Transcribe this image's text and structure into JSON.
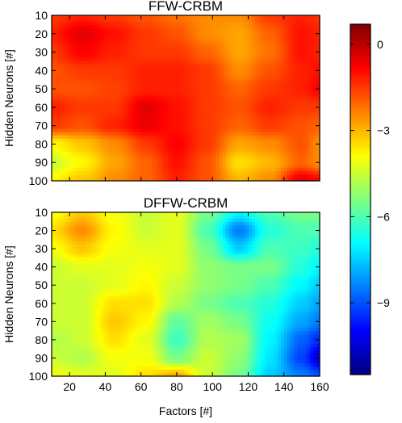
{
  "chart_data": [
    {
      "type": "heatmap",
      "title": "FFW-CRBM",
      "xlabel": "",
      "ylabel": "Hidden Neurons [#]",
      "xlim": [
        10,
        160
      ],
      "ylim": [
        10,
        100
      ],
      "y_inverted": true,
      "x_ticks": [],
      "y_ticks": [
        10,
        20,
        30,
        40,
        50,
        60,
        70,
        80,
        90,
        100
      ],
      "x_grid": [
        10,
        27,
        45,
        63,
        80,
        97,
        115,
        132,
        150,
        160
      ],
      "y_grid": [
        10,
        20,
        30,
        40,
        50,
        60,
        70,
        80,
        90,
        100
      ],
      "values": [
        [
          -1.5,
          -1.2,
          -1.5,
          -1.8,
          -2.2,
          -2.5,
          -2.5,
          -1.5,
          -1.2,
          -1.4
        ],
        [
          -1.2,
          -0.5,
          -1.0,
          -1.5,
          -1.8,
          -2.5,
          -2.8,
          -2.0,
          -1.0,
          -1.2
        ],
        [
          -1.5,
          -0.8,
          -1.2,
          -1.5,
          -1.5,
          -2.0,
          -2.8,
          -2.2,
          -1.0,
          -1.2
        ],
        [
          -1.8,
          -1.5,
          -1.5,
          -1.2,
          -1.2,
          -1.5,
          -2.5,
          -1.8,
          -1.2,
          -1.0
        ],
        [
          -1.8,
          -1.8,
          -1.6,
          -1.2,
          -1.2,
          -1.5,
          -2.0,
          -1.5,
          -1.2,
          -0.8
        ],
        [
          -1.2,
          -1.5,
          -1.5,
          -0.5,
          -1.0,
          -1.5,
          -1.8,
          -1.2,
          -1.5,
          -1.5
        ],
        [
          -1.5,
          -1.8,
          -1.2,
          -0.6,
          -1.0,
          -1.5,
          -2.0,
          -1.5,
          -1.8,
          -2.0
        ],
        [
          -3.8,
          -3.2,
          -2.5,
          -1.5,
          -0.8,
          -1.5,
          -2.8,
          -2.5,
          -1.8,
          -2.5
        ],
        [
          -4.5,
          -3.8,
          -2.8,
          -2.0,
          -1.0,
          -1.8,
          -3.5,
          -3.0,
          -2.0,
          -2.5
        ],
        [
          -3.8,
          -3.2,
          -2.5,
          -2.0,
          -1.2,
          -1.8,
          -3.0,
          -2.5,
          -0.5,
          -0.8
        ]
      ]
    },
    {
      "type": "heatmap",
      "title": "DFFW-CRBM",
      "xlabel": "Factors [#]",
      "ylabel": "Hidden Neurons [#]",
      "xlim": [
        10,
        160
      ],
      "ylim": [
        10,
        100
      ],
      "y_inverted": true,
      "x_ticks": [
        20,
        40,
        60,
        80,
        100,
        120,
        140,
        160
      ],
      "y_ticks": [
        10,
        20,
        30,
        40,
        50,
        60,
        70,
        80,
        90,
        100
      ],
      "x_grid": [
        10,
        27,
        45,
        63,
        80,
        97,
        115,
        132,
        150,
        160
      ],
      "y_grid": [
        10,
        20,
        30,
        40,
        50,
        60,
        70,
        80,
        90,
        100
      ],
      "values": [
        [
          -4.0,
          -3.2,
          -4.0,
          -4.5,
          -4.2,
          -5.5,
          -7.0,
          -6.0,
          -5.5,
          -5.5
        ],
        [
          -3.5,
          -2.5,
          -3.8,
          -4.5,
          -4.2,
          -6.0,
          -8.5,
          -6.5,
          -6.0,
          -6.0
        ],
        [
          -4.0,
          -3.2,
          -4.0,
          -4.2,
          -4.2,
          -5.5,
          -7.5,
          -6.0,
          -6.2,
          -6.5
        ],
        [
          -4.5,
          -4.2,
          -4.2,
          -4.0,
          -4.2,
          -5.2,
          -5.5,
          -5.5,
          -6.5,
          -7.0
        ],
        [
          -4.5,
          -4.5,
          -4.2,
          -3.8,
          -4.5,
          -5.2,
          -5.5,
          -6.0,
          -7.0,
          -7.5
        ],
        [
          -4.5,
          -4.5,
          -3.5,
          -3.5,
          -4.8,
          -5.5,
          -6.0,
          -6.5,
          -7.5,
          -8.0
        ],
        [
          -4.5,
          -4.5,
          -3.2,
          -3.8,
          -5.8,
          -5.0,
          -5.5,
          -6.8,
          -8.0,
          -8.5
        ],
        [
          -4.8,
          -4.5,
          -3.5,
          -4.2,
          -6.2,
          -4.8,
          -5.0,
          -7.0,
          -8.8,
          -9.5
        ],
        [
          -4.5,
          -4.8,
          -4.0,
          -4.0,
          -5.5,
          -4.5,
          -5.2,
          -7.2,
          -9.2,
          -10.5
        ],
        [
          -4.0,
          -4.2,
          -4.2,
          -3.5,
          -2.8,
          -4.5,
          -5.5,
          -7.5,
          -8.5,
          -9.0
        ]
      ]
    },
    {
      "type": "colorbar",
      "range": [
        -11.5,
        0.7
      ],
      "ticks": [
        0,
        -3,
        -6,
        -9
      ],
      "colormap": "jet"
    }
  ]
}
